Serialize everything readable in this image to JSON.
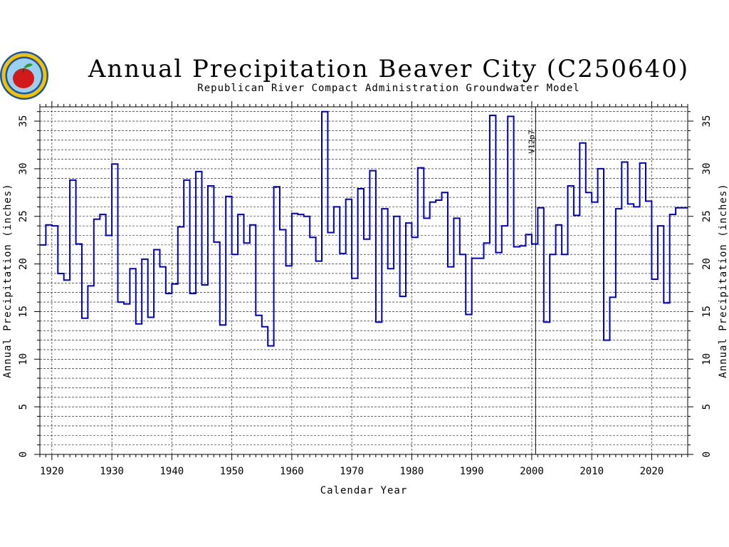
{
  "chart_data": {
    "type": "line",
    "step": true,
    "title": "Annual Precipitation Beaver City (C250640)",
    "subtitle": "Republican River Compact Administration Groundwater Model",
    "xlabel": "Calendar Year",
    "ylabel": "Annual Precipitation (inches)",
    "xlim": [
      1918,
      2026
    ],
    "ylim": [
      0,
      36.5
    ],
    "x_ticks": [
      1920,
      1930,
      1940,
      1950,
      1960,
      1970,
      1980,
      1990,
      2000,
      2010,
      2020
    ],
    "y_ticks": [
      0,
      5,
      10,
      15,
      20,
      25,
      30,
      35
    ],
    "grid": true,
    "line_color": "#0000cc",
    "annotation": {
      "label": "V12p7",
      "x": 2001
    },
    "series": [
      {
        "years": [
          1918,
          1919,
          1920,
          1921,
          1922,
          1923,
          1924,
          1925,
          1926,
          1927,
          1928,
          1929,
          1930,
          1931,
          1932,
          1933,
          1934,
          1935,
          1936,
          1937,
          1938,
          1939,
          1940,
          1941,
          1942,
          1943,
          1944,
          1945,
          1946,
          1947,
          1948,
          1949,
          1950,
          1951,
          1952,
          1953,
          1954,
          1955,
          1956,
          1957,
          1958,
          1959,
          1960,
          1961,
          1962,
          1963,
          1964,
          1965,
          1966,
          1967,
          1968,
          1969,
          1970,
          1971,
          1972,
          1973,
          1974,
          1975,
          1976,
          1977,
          1978,
          1979,
          1980,
          1981,
          1982,
          1983,
          1984,
          1985,
          1986,
          1987,
          1988,
          1989,
          1990,
          1991,
          1992,
          1993,
          1994,
          1995,
          1996,
          1997,
          1998,
          1999,
          2000,
          2001,
          2002,
          2003,
          2004,
          2005,
          2006,
          2007,
          2008,
          2009,
          2010,
          2011,
          2012,
          2013,
          2014,
          2015,
          2016,
          2017,
          2018,
          2019,
          2020,
          2021,
          2022,
          2023,
          2024,
          2025
        ],
        "values": [
          22.0,
          24.1,
          24.0,
          19.0,
          18.3,
          28.8,
          22.1,
          14.3,
          17.7,
          24.7,
          25.2,
          23.0,
          30.5,
          16.0,
          15.8,
          19.5,
          13.7,
          20.5,
          14.4,
          21.5,
          19.7,
          16.9,
          17.9,
          23.9,
          28.8,
          16.9,
          29.7,
          17.8,
          28.2,
          22.3,
          13.6,
          27.1,
          21.0,
          25.2,
          22.2,
          24.1,
          14.6,
          13.4,
          11.4,
          28.1,
          23.6,
          19.8,
          25.3,
          25.2,
          25.0,
          22.8,
          20.3,
          36.0,
          23.3,
          26.0,
          21.1,
          26.8,
          18.5,
          27.9,
          22.6,
          29.8,
          13.9,
          25.8,
          19.5,
          25.0,
          16.6,
          24.3,
          22.8,
          30.1,
          24.8,
          26.5,
          26.7,
          27.5,
          19.7,
          24.8,
          21.0,
          14.7,
          20.6,
          20.6,
          22.2,
          35.6,
          21.2,
          24.0,
          35.5,
          21.8,
          21.9,
          23.1,
          22.1,
          25.9,
          13.9,
          21.0,
          24.1,
          21.0,
          28.2,
          25.1,
          32.7,
          27.5,
          26.5,
          30.0,
          12.0,
          16.5,
          25.8,
          30.7,
          26.3,
          26.0,
          30.6,
          26.6,
          18.4,
          24.0,
          15.9,
          25.2,
          25.9,
          25.9
        ]
      }
    ]
  }
}
